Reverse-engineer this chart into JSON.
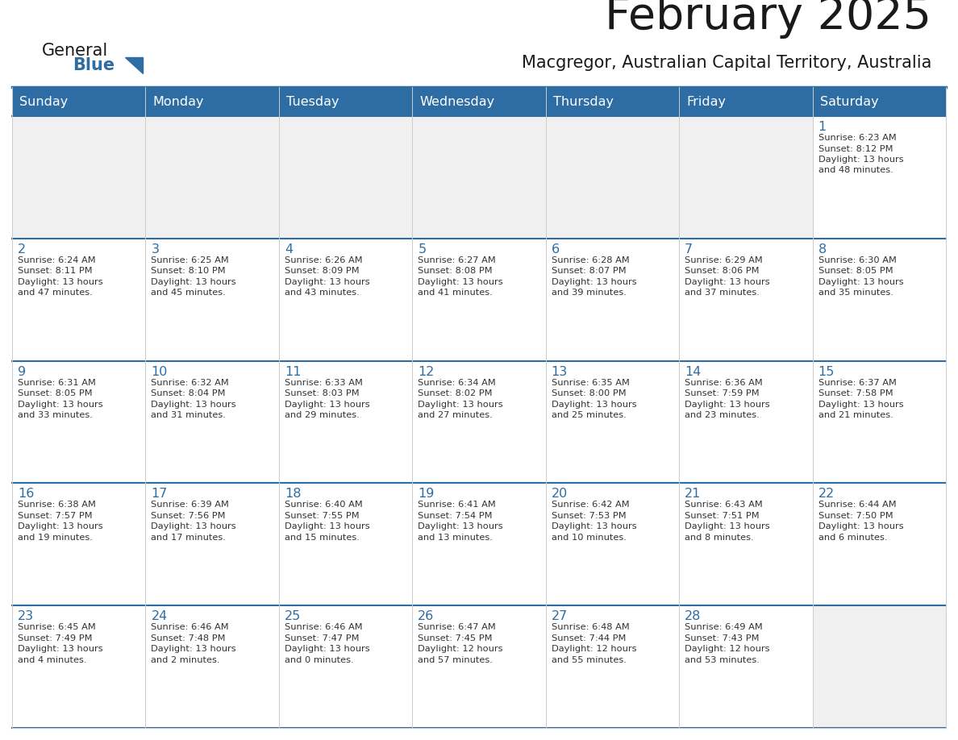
{
  "title": "February 2025",
  "subtitle": "Macgregor, Australian Capital Territory, Australia",
  "header_bg": "#2E6DA4",
  "header_text_color": "#FFFFFF",
  "border_color": "#2E6DA4",
  "row_border_color": "#2E6DA4",
  "vert_border_color": "#CCCCCC",
  "cell_bg_empty": "#F0F0F0",
  "cell_bg_filled": "#FFFFFF",
  "title_color": "#1A1A1A",
  "subtitle_color": "#1A1A1A",
  "day_num_color": "#2E6DA4",
  "cell_text_color": "#333333",
  "logo_general_color": "#1A1A1A",
  "logo_blue_color": "#2E6DA4",
  "day_names": [
    "Sunday",
    "Monday",
    "Tuesday",
    "Wednesday",
    "Thursday",
    "Friday",
    "Saturday"
  ],
  "weeks": [
    [
      {
        "day": null,
        "sunrise": null,
        "sunset": null,
        "daylight": null
      },
      {
        "day": null,
        "sunrise": null,
        "sunset": null,
        "daylight": null
      },
      {
        "day": null,
        "sunrise": null,
        "sunset": null,
        "daylight": null
      },
      {
        "day": null,
        "sunrise": null,
        "sunset": null,
        "daylight": null
      },
      {
        "day": null,
        "sunrise": null,
        "sunset": null,
        "daylight": null
      },
      {
        "day": null,
        "sunrise": null,
        "sunset": null,
        "daylight": null
      },
      {
        "day": 1,
        "sunrise": "6:23 AM",
        "sunset": "8:12 PM",
        "daylight": "13 hours and 48 minutes."
      }
    ],
    [
      {
        "day": 2,
        "sunrise": "6:24 AM",
        "sunset": "8:11 PM",
        "daylight": "13 hours and 47 minutes."
      },
      {
        "day": 3,
        "sunrise": "6:25 AM",
        "sunset": "8:10 PM",
        "daylight": "13 hours and 45 minutes."
      },
      {
        "day": 4,
        "sunrise": "6:26 AM",
        "sunset": "8:09 PM",
        "daylight": "13 hours and 43 minutes."
      },
      {
        "day": 5,
        "sunrise": "6:27 AM",
        "sunset": "8:08 PM",
        "daylight": "13 hours and 41 minutes."
      },
      {
        "day": 6,
        "sunrise": "6:28 AM",
        "sunset": "8:07 PM",
        "daylight": "13 hours and 39 minutes."
      },
      {
        "day": 7,
        "sunrise": "6:29 AM",
        "sunset": "8:06 PM",
        "daylight": "13 hours and 37 minutes."
      },
      {
        "day": 8,
        "sunrise": "6:30 AM",
        "sunset": "8:05 PM",
        "daylight": "13 hours and 35 minutes."
      }
    ],
    [
      {
        "day": 9,
        "sunrise": "6:31 AM",
        "sunset": "8:05 PM",
        "daylight": "13 hours and 33 minutes."
      },
      {
        "day": 10,
        "sunrise": "6:32 AM",
        "sunset": "8:04 PM",
        "daylight": "13 hours and 31 minutes."
      },
      {
        "day": 11,
        "sunrise": "6:33 AM",
        "sunset": "8:03 PM",
        "daylight": "13 hours and 29 minutes."
      },
      {
        "day": 12,
        "sunrise": "6:34 AM",
        "sunset": "8:02 PM",
        "daylight": "13 hours and 27 minutes."
      },
      {
        "day": 13,
        "sunrise": "6:35 AM",
        "sunset": "8:00 PM",
        "daylight": "13 hours and 25 minutes."
      },
      {
        "day": 14,
        "sunrise": "6:36 AM",
        "sunset": "7:59 PM",
        "daylight": "13 hours and 23 minutes."
      },
      {
        "day": 15,
        "sunrise": "6:37 AM",
        "sunset": "7:58 PM",
        "daylight": "13 hours and 21 minutes."
      }
    ],
    [
      {
        "day": 16,
        "sunrise": "6:38 AM",
        "sunset": "7:57 PM",
        "daylight": "13 hours and 19 minutes."
      },
      {
        "day": 17,
        "sunrise": "6:39 AM",
        "sunset": "7:56 PM",
        "daylight": "13 hours and 17 minutes."
      },
      {
        "day": 18,
        "sunrise": "6:40 AM",
        "sunset": "7:55 PM",
        "daylight": "13 hours and 15 minutes."
      },
      {
        "day": 19,
        "sunrise": "6:41 AM",
        "sunset": "7:54 PM",
        "daylight": "13 hours and 13 minutes."
      },
      {
        "day": 20,
        "sunrise": "6:42 AM",
        "sunset": "7:53 PM",
        "daylight": "13 hours and 10 minutes."
      },
      {
        "day": 21,
        "sunrise": "6:43 AM",
        "sunset": "7:51 PM",
        "daylight": "13 hours and 8 minutes."
      },
      {
        "day": 22,
        "sunrise": "6:44 AM",
        "sunset": "7:50 PM",
        "daylight": "13 hours and 6 minutes."
      }
    ],
    [
      {
        "day": 23,
        "sunrise": "6:45 AM",
        "sunset": "7:49 PM",
        "daylight": "13 hours and 4 minutes."
      },
      {
        "day": 24,
        "sunrise": "6:46 AM",
        "sunset": "7:48 PM",
        "daylight": "13 hours and 2 minutes."
      },
      {
        "day": 25,
        "sunrise": "6:46 AM",
        "sunset": "7:47 PM",
        "daylight": "13 hours and 0 minutes."
      },
      {
        "day": 26,
        "sunrise": "6:47 AM",
        "sunset": "7:45 PM",
        "daylight": "12 hours and 57 minutes."
      },
      {
        "day": 27,
        "sunrise": "6:48 AM",
        "sunset": "7:44 PM",
        "daylight": "12 hours and 55 minutes."
      },
      {
        "day": 28,
        "sunrise": "6:49 AM",
        "sunset": "7:43 PM",
        "daylight": "12 hours and 53 minutes."
      },
      {
        "day": null,
        "sunrise": null,
        "sunset": null,
        "daylight": null
      }
    ]
  ]
}
